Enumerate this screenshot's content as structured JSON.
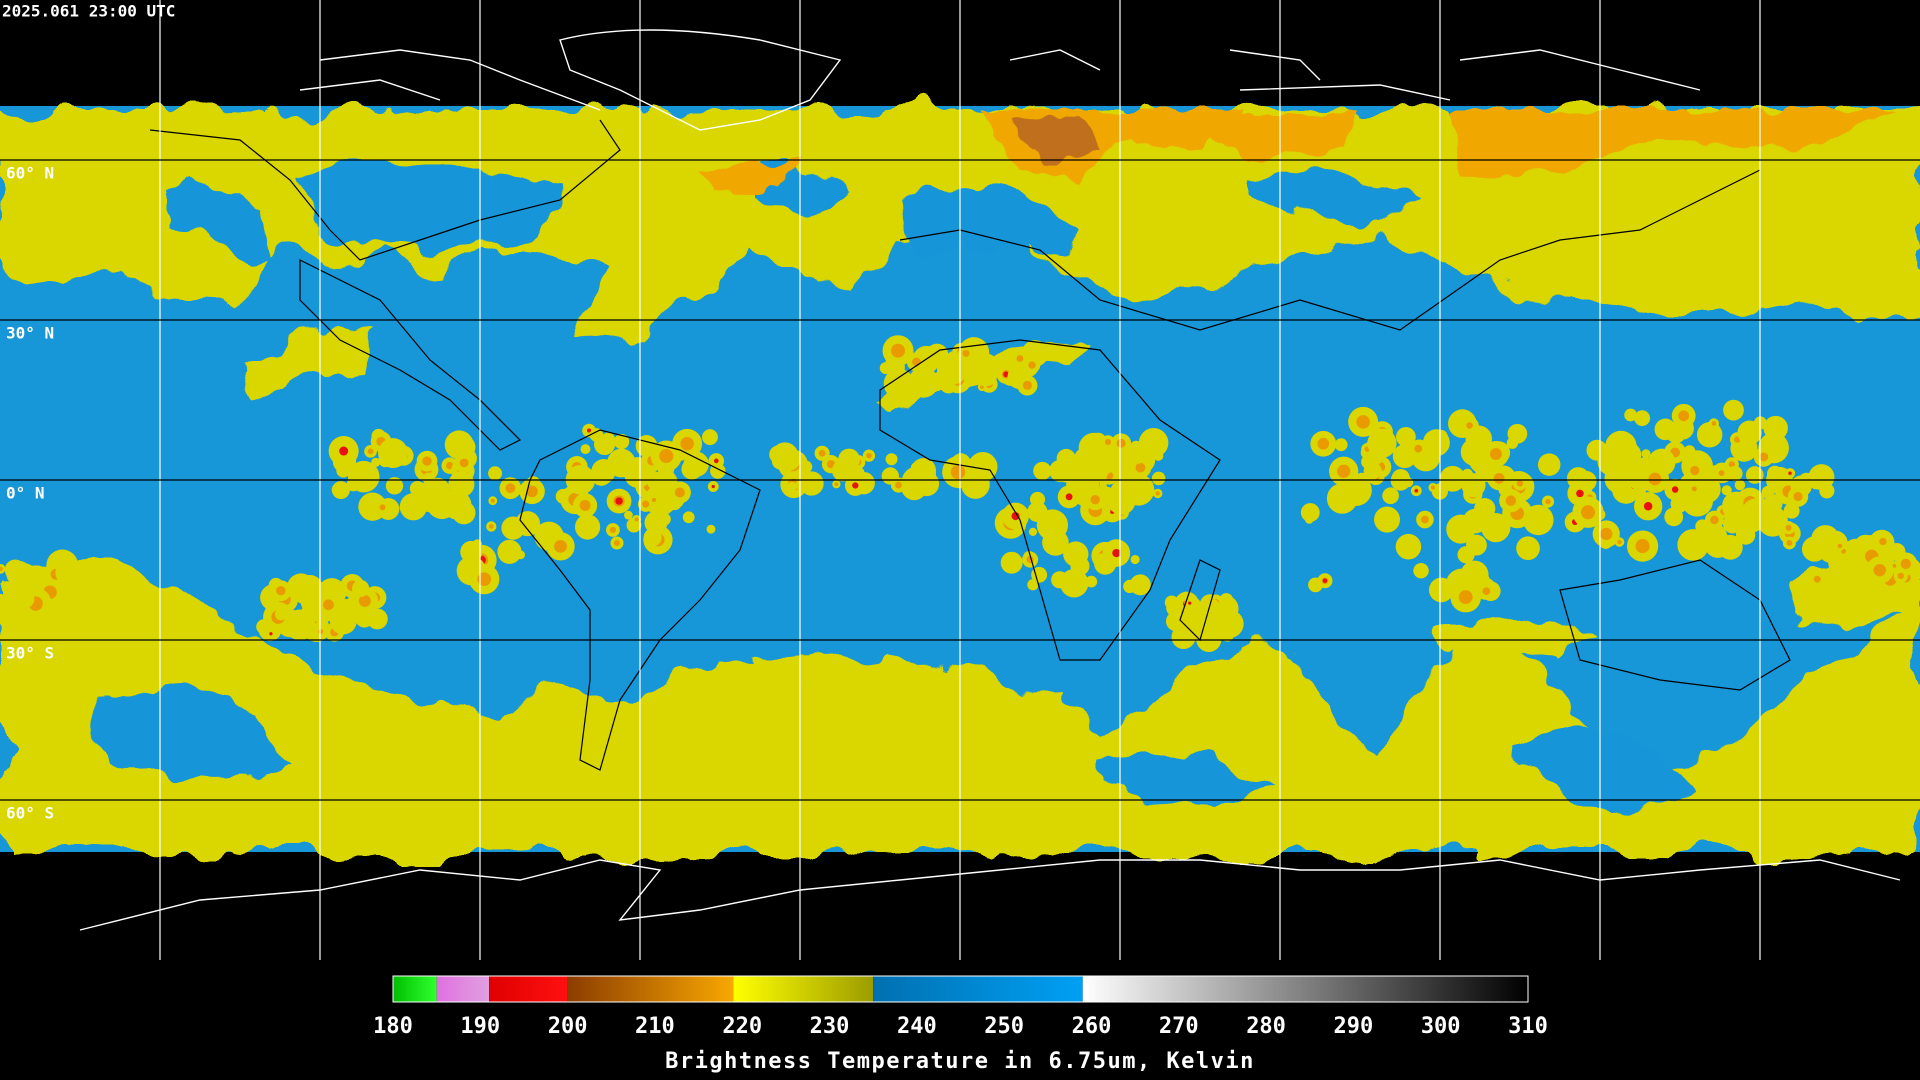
{
  "header": {
    "title": "2025.061 23:00 UTC"
  },
  "map": {
    "lat_lines": [
      {
        "value": 60,
        "label": "60° N"
      },
      {
        "value": 30,
        "label": "30° N"
      },
      {
        "value": 0,
        "label": "0° N"
      },
      {
        "value": -30,
        "label": "30° S"
      },
      {
        "value": -60,
        "label": "60° S"
      }
    ],
    "lon_lines": [
      -150,
      -120,
      -90,
      -60,
      -30,
      0,
      30,
      60,
      90,
      120,
      150
    ]
  },
  "colorbar": {
    "label": "Brightness Temperature in 6.75um, Kelvin",
    "range": [
      180,
      310
    ],
    "ticks": [
      180,
      190,
      200,
      210,
      220,
      230,
      240,
      250,
      260,
      270,
      280,
      290,
      300,
      310
    ],
    "segments": [
      {
        "from": 180,
        "to": 185,
        "colors": [
          "#00c000",
          "#30ff30"
        ]
      },
      {
        "from": 185,
        "to": 191,
        "colors": [
          "#e070e0",
          "#e0a0e0"
        ]
      },
      {
        "from": 191,
        "to": 200,
        "colors": [
          "#e00000",
          "#ff1010"
        ]
      },
      {
        "from": 200,
        "to": 219,
        "colors": [
          "#8c3c00",
          "#f8a800"
        ]
      },
      {
        "from": 219,
        "to": 235,
        "colors": [
          "#ffff00",
          "#9c9c00"
        ]
      },
      {
        "from": 235,
        "to": 259,
        "colors": [
          "#0070b0",
          "#00a0f4"
        ]
      },
      {
        "from": 259,
        "to": 310,
        "colors": [
          "#ffffff",
          "#000000"
        ]
      }
    ]
  }
}
